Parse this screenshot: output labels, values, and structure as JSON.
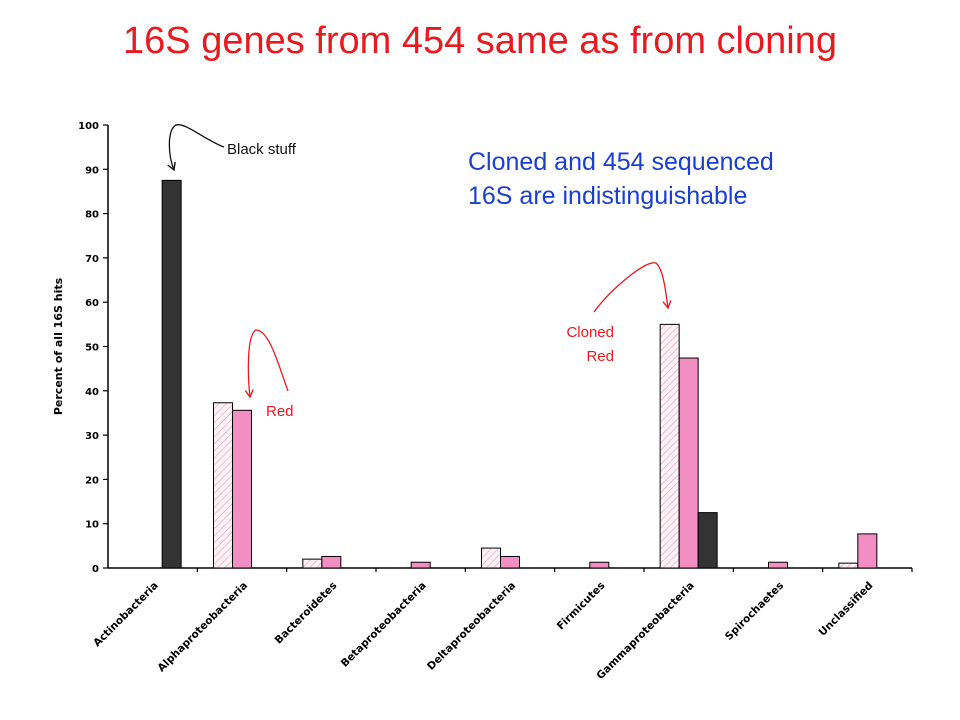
{
  "title": "16S genes from 454 same as from cloning",
  "callouts": {
    "summary_line1": "Cloned and 454 sequenced",
    "summary_line2": "16S are indistinguishable",
    "black_stuff": "Black stuff",
    "red": "Red",
    "cloned": "Cloned",
    "cloned_red": "Red"
  },
  "colors": {
    "cloned": "#f8dbe6",
    "red": "#f28ec1",
    "black": "#333333",
    "arrow": "#e8191f",
    "title": "#e8191f",
    "summary": "#1a3fcf"
  },
  "chart_data": {
    "type": "bar",
    "ylabel": "Percent of all 16S hits",
    "xlabel": "",
    "ylim": [
      0,
      100
    ],
    "yticks": [
      0,
      10,
      20,
      30,
      40,
      50,
      60,
      70,
      80,
      90,
      100
    ],
    "categories": [
      "Actinobacteria",
      "Alphaproteobacteria",
      "Bacteroidetes",
      "Betaproteobacteria",
      "Deltaproteobacteria",
      "Firmicutes",
      "Gammaproteobacteria",
      "Spirochaetes",
      "Unclassified"
    ],
    "series": [
      {
        "key": "cloned",
        "pattern": "hatched",
        "values": [
          0,
          37.3,
          2,
          0,
          4.5,
          0,
          55,
          0,
          1.1
        ]
      },
      {
        "key": "red",
        "pattern": "solid",
        "values": [
          0,
          35.6,
          2.6,
          1.3,
          2.6,
          1.3,
          47.4,
          1.3,
          7.7
        ]
      },
      {
        "key": "black",
        "pattern": "solid",
        "values": [
          87.5,
          0,
          0,
          0,
          0,
          0,
          12.5,
          0,
          0
        ]
      }
    ],
    "grid": false,
    "legend": "none"
  }
}
